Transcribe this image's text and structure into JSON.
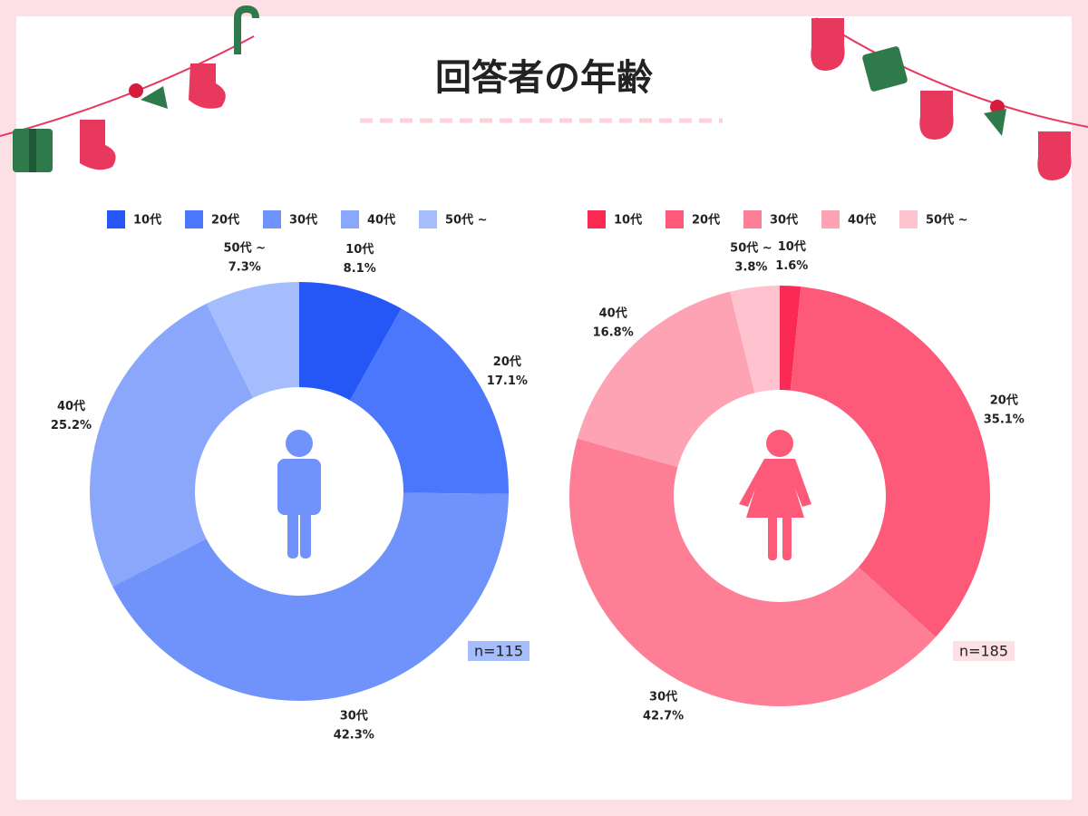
{
  "title": "回答者の年齢",
  "chart_data": [
    {
      "type": "pie",
      "categories": [
        "10代",
        "20代",
        "30代",
        "40代",
        "50代 ~"
      ],
      "values": [
        8.1,
        17.1,
        42.3,
        25.2,
        7.3
      ],
      "value_labels": [
        "8.1%",
        "17.1%",
        "42.3%",
        "25.2%",
        "7.3%"
      ],
      "colors": [
        "#2457f5",
        "#4a77fb",
        "#6f93fb",
        "#8aa7fc",
        "#a5bcfd"
      ],
      "annotation": "n=115",
      "annotation_color": "#a5bcfd"
    },
    {
      "type": "pie",
      "categories": [
        "10代",
        "20代",
        "30代",
        "40代",
        "50代 ~"
      ],
      "values": [
        1.6,
        35.1,
        42.7,
        16.8,
        3.8
      ],
      "value_labels": [
        "1.6%",
        "35.1%",
        "42.7%",
        "16.8%",
        "3.8%"
      ],
      "colors": [
        "#fb2a55",
        "#fd5a7a",
        "#fe7e96",
        "#fea3b4",
        "#fec3cf"
      ],
      "annotation": "n=185",
      "annotation_color": "#fde0e6"
    }
  ]
}
